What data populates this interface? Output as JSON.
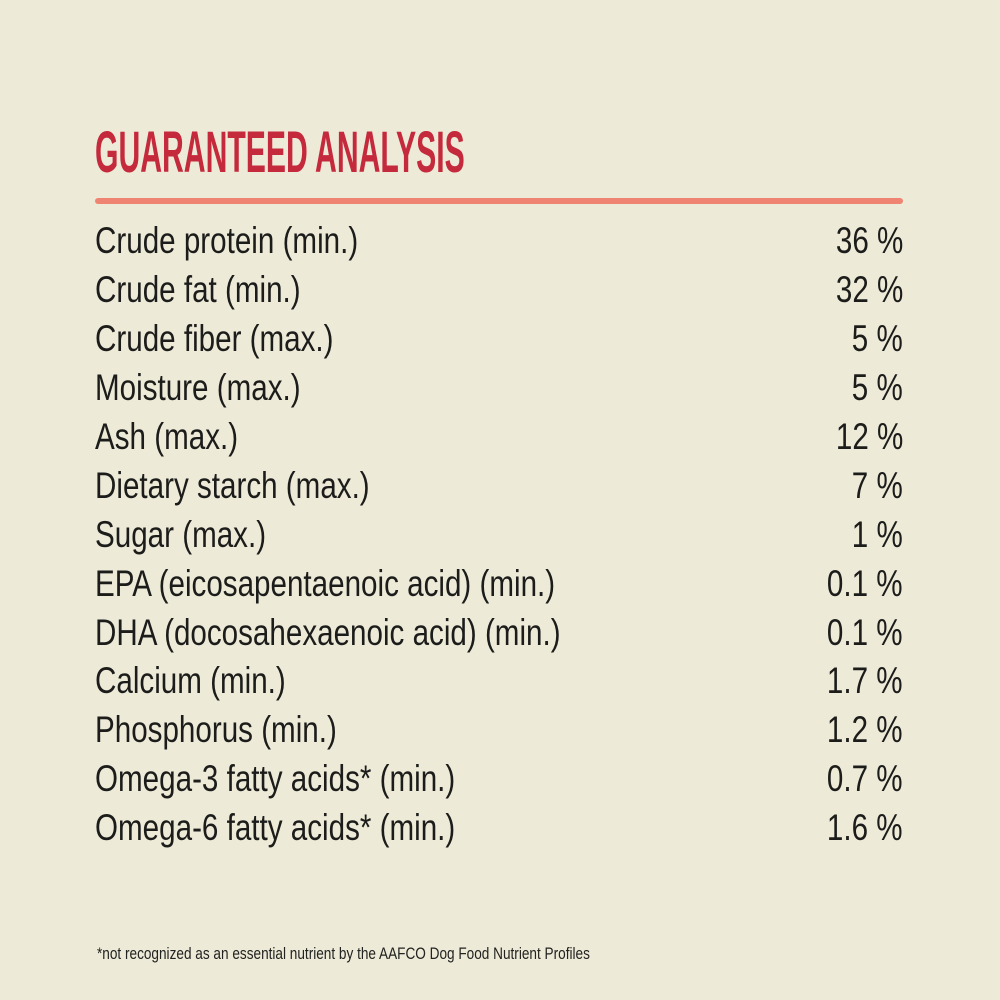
{
  "theme": {
    "background": "#edead8",
    "accent": "#c5293c",
    "divider": "#f08473",
    "text": "#1c1c1a"
  },
  "header": {
    "title": "GUARANTEED ANALYSIS"
  },
  "table": {
    "rows": [
      {
        "label": "Crude protein (min.)",
        "value": "36 %"
      },
      {
        "label": "Crude fat (min.)",
        "value": "32 %"
      },
      {
        "label": "Crude fiber (max.)",
        "value": "5 %"
      },
      {
        "label": "Moisture (max.)",
        "value": "5 %"
      },
      {
        "label": "Ash (max.)",
        "value": "12 %"
      },
      {
        "label": "Dietary starch (max.)",
        "value": "7 %"
      },
      {
        "label": "Sugar (max.)",
        "value": "1 %"
      },
      {
        "label": "EPA (eicosapentaenoic acid) (min.)",
        "value": "0.1 %"
      },
      {
        "label": "DHA (docosahexaenoic acid) (min.)",
        "value": "0.1 %"
      },
      {
        "label": "Calcium (min.)",
        "value": "1.7 %"
      },
      {
        "label": "Phosphorus (min.)",
        "value": "1.2 %"
      },
      {
        "label": "Omega-3 fatty acids* (min.)",
        "value": "0.7 %"
      },
      {
        "label": "Omega-6 fatty acids* (min.)",
        "value": "1.6 %"
      }
    ]
  },
  "footnote": {
    "text": "*not recognized as an essential nutrient by the AAFCO Dog Food Nutrient Profiles"
  }
}
